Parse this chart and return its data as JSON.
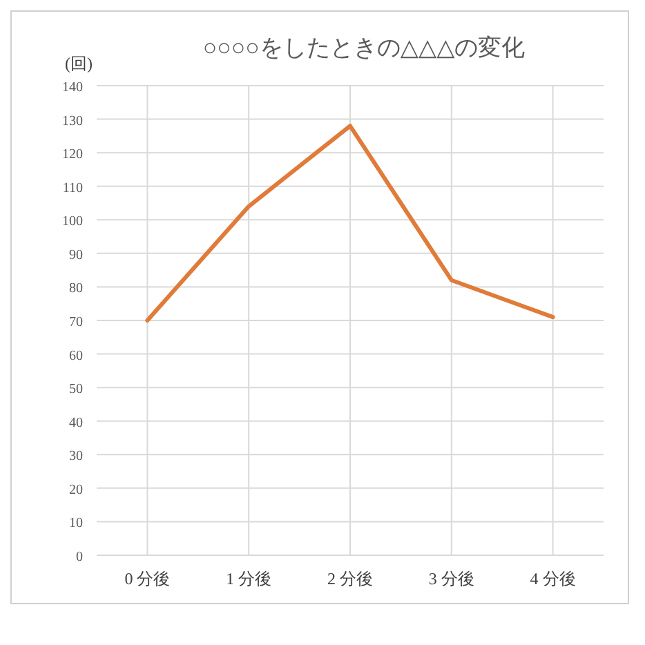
{
  "chart_data": {
    "type": "line",
    "title": "○○○○をしたときの△△△の変化",
    "ylabel": "(回)",
    "categories": [
      "0 分後",
      "1 分後",
      "2 分後",
      "3 分後",
      "4 分後"
    ],
    "series": [
      {
        "color": "#e07b39",
        "values": [
          70,
          104,
          128,
          82,
          71
        ]
      }
    ],
    "ylim": [
      0,
      140
    ],
    "yticks": [
      0,
      10,
      20,
      30,
      40,
      50,
      60,
      70,
      80,
      90,
      100,
      110,
      120,
      130,
      140
    ],
    "grid": true
  }
}
